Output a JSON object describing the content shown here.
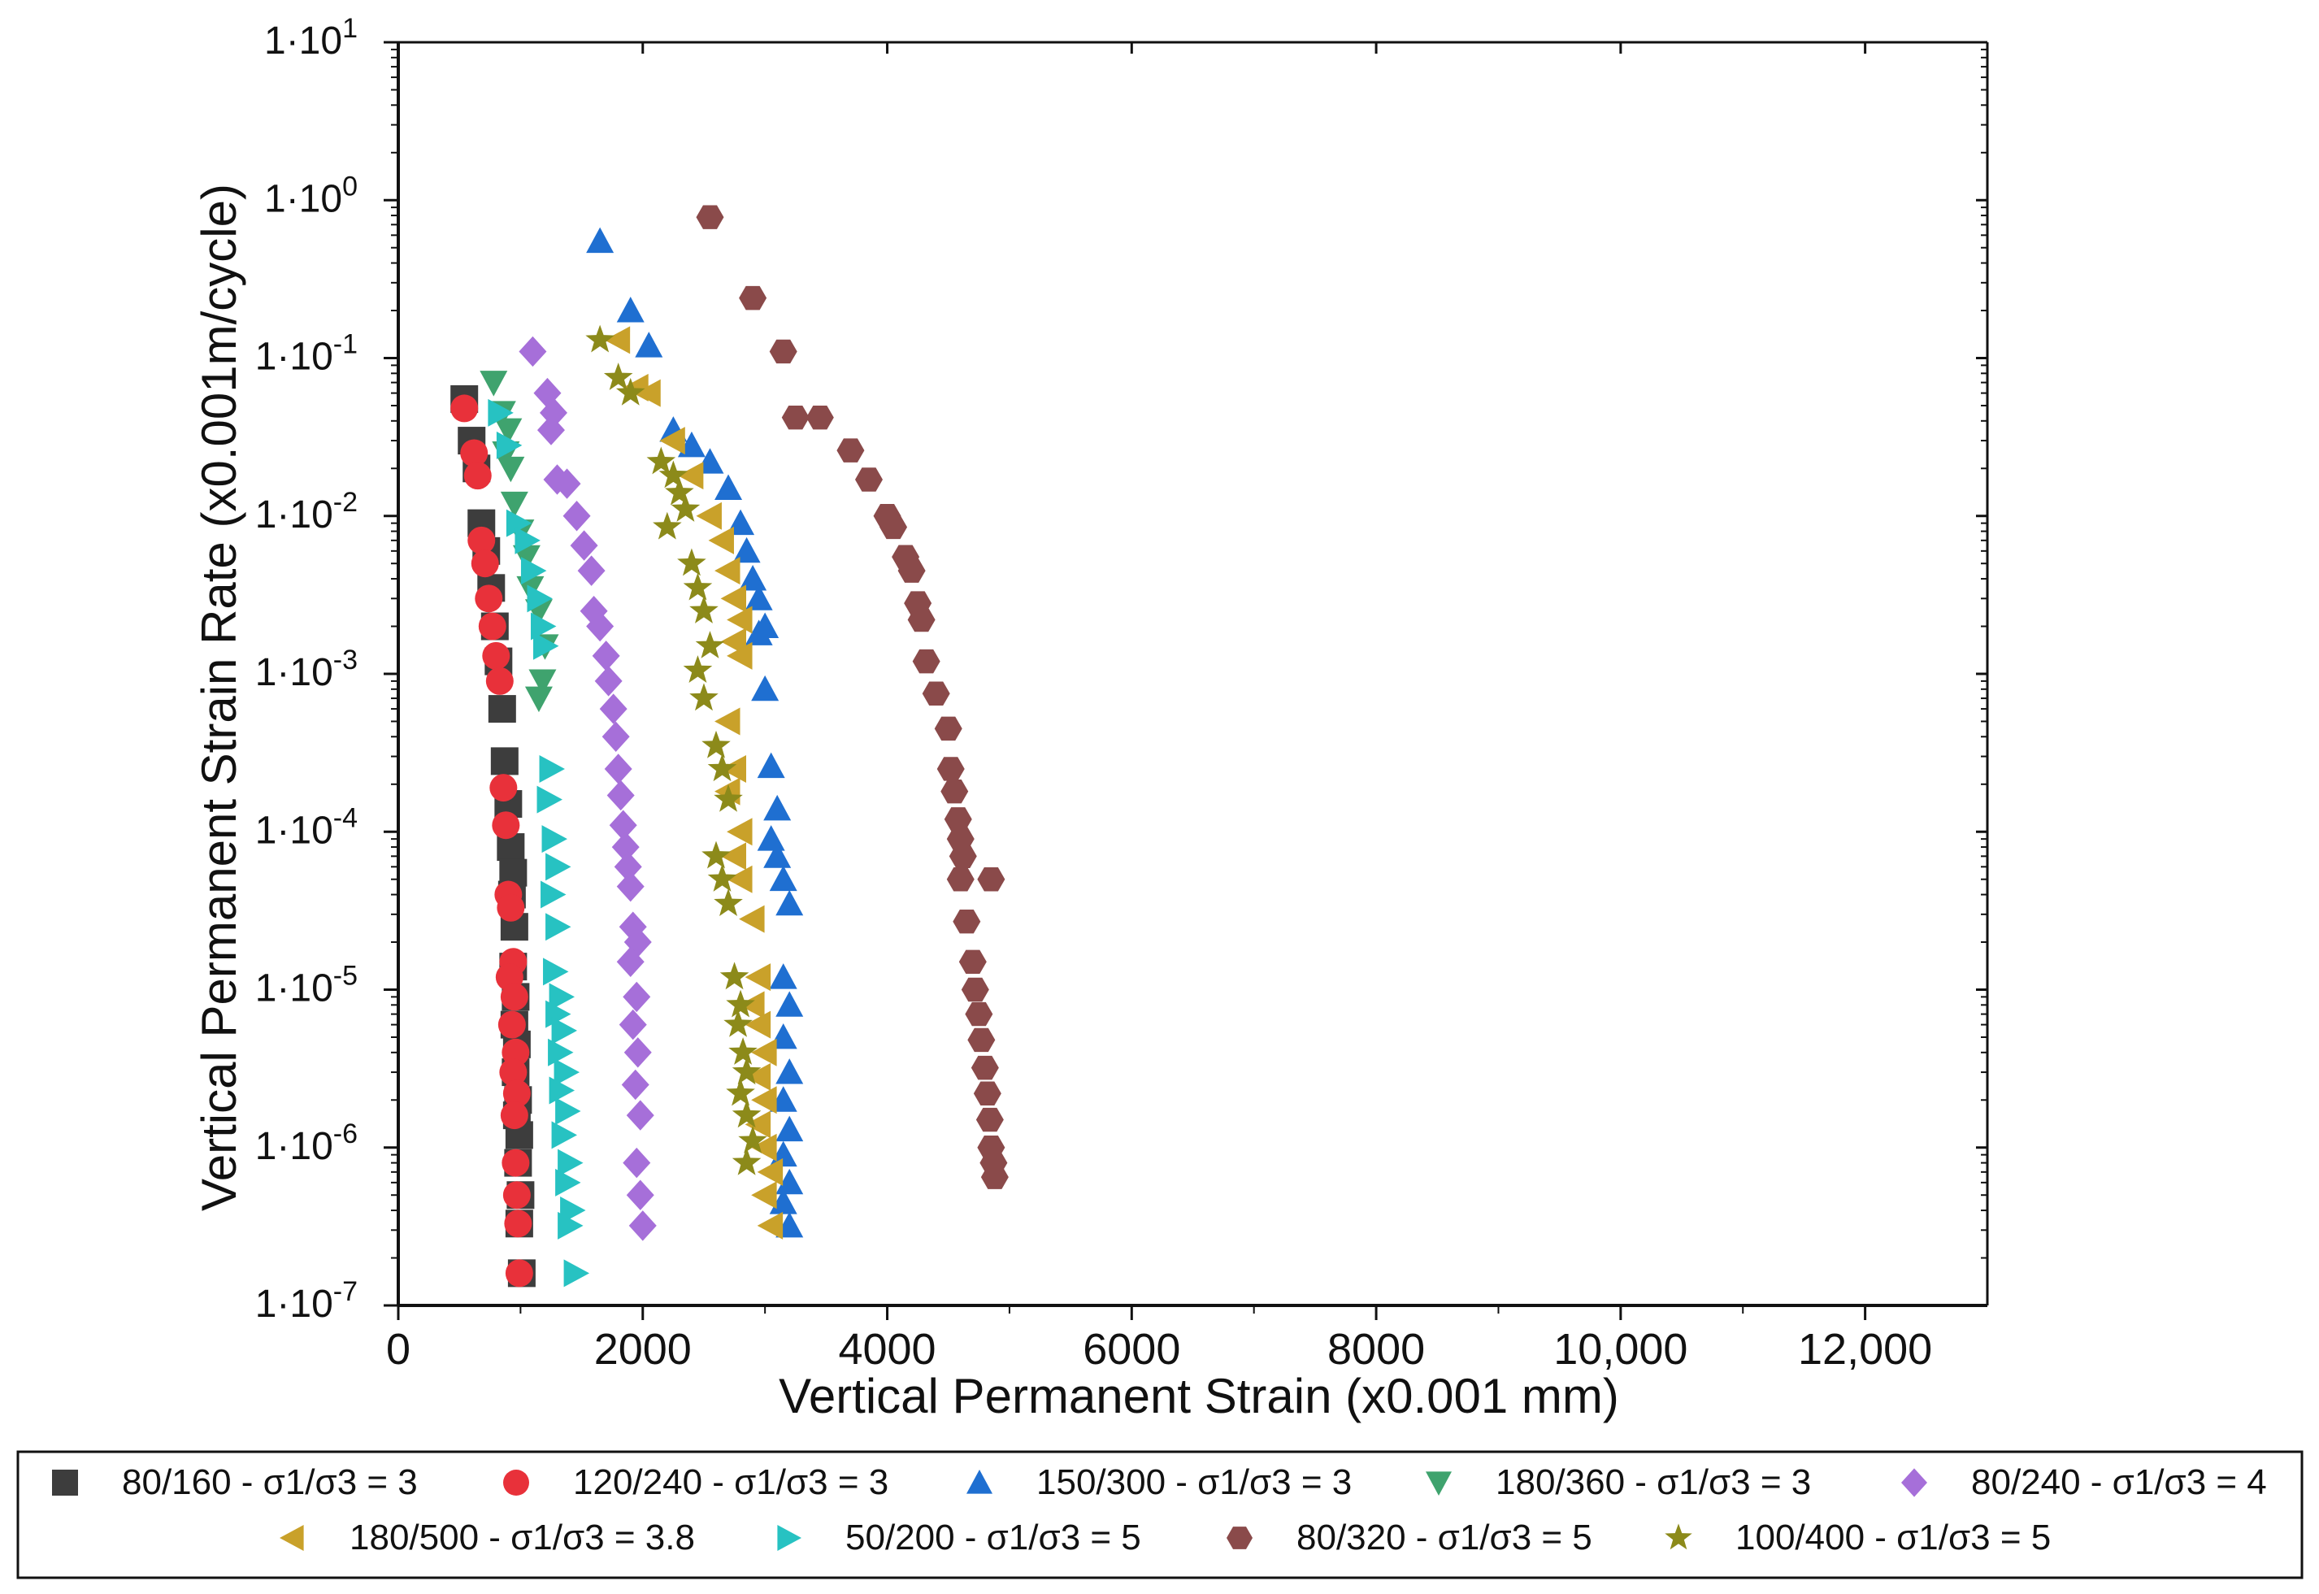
{
  "chart_data": {
    "type": "scatter",
    "title": "",
    "xlabel": "Vertical Permanent Strain  (x0.001 mm)",
    "ylabel": "Vertical Permanent Strain Rate (x0.001m/cycle)",
    "xlim": [
      0,
      13000
    ],
    "ylim_log10": [
      -7,
      1
    ],
    "y_scale": "log",
    "x_ticks": [
      0,
      2000,
      4000,
      6000,
      8000,
      10000,
      12000
    ],
    "x_tick_labels": [
      "0",
      "2000",
      "4000",
      "6000",
      "8000",
      "10,000",
      "12,000"
    ],
    "y_ticks": [
      {
        "mant": "1·10",
        "exp": "1",
        "value": 10
      },
      {
        "mant": "1·10",
        "exp": "0",
        "value": 1
      },
      {
        "mant": "1·10",
        "exp": "-1",
        "value": 0.1
      },
      {
        "mant": "1·10",
        "exp": "-2",
        "value": 0.01
      },
      {
        "mant": "1·10",
        "exp": "-3",
        "value": 0.001
      },
      {
        "mant": "1·10",
        "exp": "-4",
        "value": 0.0001
      },
      {
        "mant": "1·10",
        "exp": "-5",
        "value": 1e-05
      },
      {
        "mant": "1·10",
        "exp": "-6",
        "value": 1e-06
      },
      {
        "mant": "1·10",
        "exp": "-7",
        "value": 1e-07
      }
    ],
    "legend_position": "bottom",
    "series": [
      {
        "name": "80/160 - σ1/σ3 = 3",
        "marker": "square",
        "color": "#3d3d3d",
        "points": [
          [
            540,
            0.055
          ],
          [
            600,
            0.03
          ],
          [
            640,
            0.02
          ],
          [
            680,
            0.009
          ],
          [
            720,
            0.006
          ],
          [
            760,
            0.0035
          ],
          [
            790,
            0.002
          ],
          [
            820,
            0.0012
          ],
          [
            850,
            0.0006
          ],
          [
            870,
            0.00028
          ],
          [
            900,
            0.00015
          ],
          [
            920,
            8e-05
          ],
          [
            940,
            5.5e-05
          ],
          [
            930,
            4e-05
          ],
          [
            950,
            2.5e-05
          ],
          [
            940,
            1.4e-05
          ],
          [
            960,
            9e-06
          ],
          [
            950,
            6e-06
          ],
          [
            970,
            4.5e-06
          ],
          [
            960,
            3e-06
          ],
          [
            980,
            2e-06
          ],
          [
            970,
            1.6e-06
          ],
          [
            990,
            1.2e-06
          ],
          [
            980,
            8e-07
          ],
          [
            1000,
            5e-07
          ],
          [
            990,
            3.3e-07
          ],
          [
            1010,
            1.6e-07
          ]
        ]
      },
      {
        "name": "120/240 - σ1/σ3 = 3",
        "marker": "circle",
        "color": "#e8313a",
        "points": [
          [
            540,
            0.048
          ],
          [
            620,
            0.025
          ],
          [
            650,
            0.018
          ],
          [
            680,
            0.007
          ],
          [
            710,
            0.005
          ],
          [
            740,
            0.003
          ],
          [
            770,
            0.002
          ],
          [
            800,
            0.0013
          ],
          [
            830,
            0.0009
          ],
          [
            860,
            0.00019
          ],
          [
            880,
            0.00011
          ],
          [
            900,
            4e-05
          ],
          [
            920,
            3.3e-05
          ],
          [
            940,
            1.5e-05
          ],
          [
            910,
            1.2e-05
          ],
          [
            950,
            9e-06
          ],
          [
            930,
            6e-06
          ],
          [
            960,
            4e-06
          ],
          [
            940,
            3e-06
          ],
          [
            970,
            2.2e-06
          ],
          [
            950,
            1.6e-06
          ],
          [
            960,
            8e-07
          ],
          [
            970,
            5e-07
          ],
          [
            980,
            3.3e-07
          ],
          [
            990,
            1.6e-07
          ]
        ]
      },
      {
        "name": "150/300 - σ1/σ3 = 3",
        "marker": "triangle-up",
        "color": "#1f6fd1",
        "points": [
          [
            1650,
            0.55
          ],
          [
            1900,
            0.2
          ],
          [
            2050,
            0.12
          ],
          [
            2250,
            0.035
          ],
          [
            2400,
            0.028
          ],
          [
            2550,
            0.022
          ],
          [
            2700,
            0.015
          ],
          [
            2800,
            0.009
          ],
          [
            2850,
            0.006
          ],
          [
            2900,
            0.004
          ],
          [
            2950,
            0.003
          ],
          [
            3000,
            0.002
          ],
          [
            2950,
            0.0018
          ],
          [
            3000,
            0.0008
          ],
          [
            3050,
            0.00026
          ],
          [
            3100,
            0.00014
          ],
          [
            3050,
            9e-05
          ],
          [
            3100,
            7e-05
          ],
          [
            3150,
            5e-05
          ],
          [
            3200,
            3.5e-05
          ],
          [
            3150,
            1.2e-05
          ],
          [
            3200,
            8e-06
          ],
          [
            3150,
            5e-06
          ],
          [
            3200,
            3e-06
          ],
          [
            3150,
            2e-06
          ],
          [
            3200,
            1.3e-06
          ],
          [
            3150,
            9e-07
          ],
          [
            3200,
            6e-07
          ],
          [
            3150,
            4.5e-07
          ],
          [
            3200,
            3.2e-07
          ]
        ]
      },
      {
        "name": "180/360 - σ1/σ3 = 3",
        "marker": "triangle-down",
        "color": "#3fa36e",
        "points": [
          [
            780,
            0.07
          ],
          [
            850,
            0.045
          ],
          [
            900,
            0.035
          ],
          [
            880,
            0.025
          ],
          [
            920,
            0.02
          ],
          [
            950,
            0.012
          ],
          [
            1000,
            0.008
          ],
          [
            1050,
            0.0055
          ],
          [
            1080,
            0.0035
          ],
          [
            1150,
            0.0025
          ],
          [
            1200,
            0.0015
          ],
          [
            1180,
            0.0009
          ],
          [
            1150,
            0.0007
          ]
        ]
      },
      {
        "name": "80/240 - σ1/σ3 = 4",
        "marker": "diamond",
        "color": "#a66fd9",
        "points": [
          [
            1100,
            0.11
          ],
          [
            1220,
            0.06
          ],
          [
            1270,
            0.045
          ],
          [
            1250,
            0.035
          ],
          [
            1300,
            0.017
          ],
          [
            1380,
            0.016
          ],
          [
            1460,
            0.01
          ],
          [
            1520,
            0.0065
          ],
          [
            1580,
            0.0045
          ],
          [
            1600,
            0.0025
          ],
          [
            1650,
            0.002
          ],
          [
            1700,
            0.0013
          ],
          [
            1720,
            0.0009
          ],
          [
            1760,
            0.0006
          ],
          [
            1780,
            0.0004
          ],
          [
            1800,
            0.00025
          ],
          [
            1820,
            0.00017
          ],
          [
            1840,
            0.00011
          ],
          [
            1860,
            8e-05
          ],
          [
            1880,
            6e-05
          ],
          [
            1900,
            4.5e-05
          ],
          [
            1920,
            2.5e-05
          ],
          [
            1960,
            2e-05
          ],
          [
            1900,
            1.5e-05
          ],
          [
            1950,
            9e-06
          ],
          [
            1920,
            6e-06
          ],
          [
            1960,
            4e-06
          ],
          [
            1940,
            2.5e-06
          ],
          [
            1980,
            1.6e-06
          ],
          [
            1950,
            8e-07
          ],
          [
            1980,
            5e-07
          ],
          [
            2000,
            3.2e-07
          ]
        ]
      },
      {
        "name": "180/500 - σ1/σ3 = 3.8",
        "marker": "triangle-left",
        "color": "#c9a12a",
        "points": [
          [
            1800,
            0.13
          ],
          [
            1950,
            0.065
          ],
          [
            2050,
            0.06
          ],
          [
            2250,
            0.03
          ],
          [
            2400,
            0.018
          ],
          [
            2550,
            0.01
          ],
          [
            2650,
            0.007
          ],
          [
            2700,
            0.0045
          ],
          [
            2750,
            0.003
          ],
          [
            2800,
            0.0022
          ],
          [
            2750,
            0.0016
          ],
          [
            2800,
            0.0013
          ],
          [
            2700,
            0.0005
          ],
          [
            2750,
            0.00025
          ],
          [
            2700,
            0.00018
          ],
          [
            2800,
            0.0001
          ],
          [
            2750,
            7e-05
          ],
          [
            2800,
            5e-05
          ],
          [
            2900,
            2.8e-05
          ],
          [
            2950,
            1.2e-05
          ],
          [
            2900,
            8e-06
          ],
          [
            2950,
            6e-06
          ],
          [
            3000,
            4e-06
          ],
          [
            2950,
            2.8e-06
          ],
          [
            3000,
            2e-06
          ],
          [
            2950,
            1.4e-06
          ],
          [
            3000,
            1e-06
          ],
          [
            3050,
            7e-07
          ],
          [
            3000,
            5e-07
          ],
          [
            3050,
            3.2e-07
          ]
        ]
      },
      {
        "name": "50/200 - σ1/σ3 = 5",
        "marker": "triangle-right",
        "color": "#27c2c2",
        "points": [
          [
            830,
            0.045
          ],
          [
            900,
            0.028
          ],
          [
            980,
            0.009
          ],
          [
            1050,
            0.007
          ],
          [
            1100,
            0.0045
          ],
          [
            1150,
            0.003
          ],
          [
            1180,
            0.002
          ],
          [
            1200,
            0.0015
          ],
          [
            1250,
            0.00025
          ],
          [
            1230,
            0.00016
          ],
          [
            1270,
            9e-05
          ],
          [
            1300,
            6e-05
          ],
          [
            1260,
            4e-05
          ],
          [
            1300,
            2.5e-05
          ],
          [
            1280,
            1.3e-05
          ],
          [
            1330,
            9e-06
          ],
          [
            1300,
            7e-06
          ],
          [
            1350,
            5.5e-06
          ],
          [
            1320,
            4e-06
          ],
          [
            1370,
            3e-06
          ],
          [
            1330,
            2.3e-06
          ],
          [
            1380,
            1.7e-06
          ],
          [
            1350,
            1.2e-06
          ],
          [
            1400,
            8e-07
          ],
          [
            1380,
            6e-07
          ],
          [
            1420,
            4e-07
          ],
          [
            1400,
            3.2e-07
          ],
          [
            1450,
            1.6e-07
          ]
        ]
      },
      {
        "name": "80/320 - σ1/σ3 = 5",
        "marker": "hexagon",
        "color": "#8a4a4a",
        "points": [
          [
            2550,
            0.78
          ],
          [
            2900,
            0.24
          ],
          [
            3150,
            0.11
          ],
          [
            3250,
            0.042
          ],
          [
            3450,
            0.042
          ],
          [
            3700,
            0.026
          ],
          [
            3850,
            0.017
          ],
          [
            4000,
            0.01
          ],
          [
            4050,
            0.0085
          ],
          [
            4150,
            0.0055
          ],
          [
            4200,
            0.0045
          ],
          [
            4250,
            0.0028
          ],
          [
            4280,
            0.0022
          ],
          [
            4320,
            0.0012
          ],
          [
            4400,
            0.00075
          ],
          [
            4500,
            0.00045
          ],
          [
            4520,
            0.00025
          ],
          [
            4550,
            0.00018
          ],
          [
            4580,
            0.00012
          ],
          [
            4600,
            9e-05
          ],
          [
            4620,
            7e-05
          ],
          [
            4600,
            5e-05
          ],
          [
            4850,
            5e-05
          ],
          [
            4650,
            2.7e-05
          ],
          [
            4700,
            1.5e-05
          ],
          [
            4720,
            1e-05
          ],
          [
            4750,
            7e-06
          ],
          [
            4770,
            4.8e-06
          ],
          [
            4800,
            3.2e-06
          ],
          [
            4820,
            2.2e-06
          ],
          [
            4840,
            1.5e-06
          ],
          [
            4850,
            1e-06
          ],
          [
            4870,
            8e-07
          ],
          [
            4880,
            6.5e-07
          ]
        ]
      },
      {
        "name": "100/400 - σ1/σ3 = 5",
        "marker": "star",
        "color": "#8c8a1a",
        "points": [
          [
            1650,
            0.13
          ],
          [
            1800,
            0.075
          ],
          [
            1900,
            0.06
          ],
          [
            2150,
            0.022
          ],
          [
            2250,
            0.018
          ],
          [
            2300,
            0.014
          ],
          [
            2350,
            0.011
          ],
          [
            2200,
            0.0085
          ],
          [
            2400,
            0.005
          ],
          [
            2450,
            0.0035
          ],
          [
            2500,
            0.0025
          ],
          [
            2550,
            0.0015
          ],
          [
            2450,
            0.00105
          ],
          [
            2500,
            0.0007
          ],
          [
            2600,
            0.00035
          ],
          [
            2650,
            0.00025
          ],
          [
            2700,
            0.00016
          ],
          [
            2600,
            7e-05
          ],
          [
            2650,
            5e-05
          ],
          [
            2700,
            3.5e-05
          ],
          [
            2750,
            1.2e-05
          ],
          [
            2800,
            8e-06
          ],
          [
            2780,
            6e-06
          ],
          [
            2820,
            4e-06
          ],
          [
            2850,
            3e-06
          ],
          [
            2800,
            2.2e-06
          ],
          [
            2850,
            1.6e-06
          ],
          [
            2900,
            1.1e-06
          ],
          [
            2850,
            8e-07
          ]
        ]
      }
    ]
  }
}
